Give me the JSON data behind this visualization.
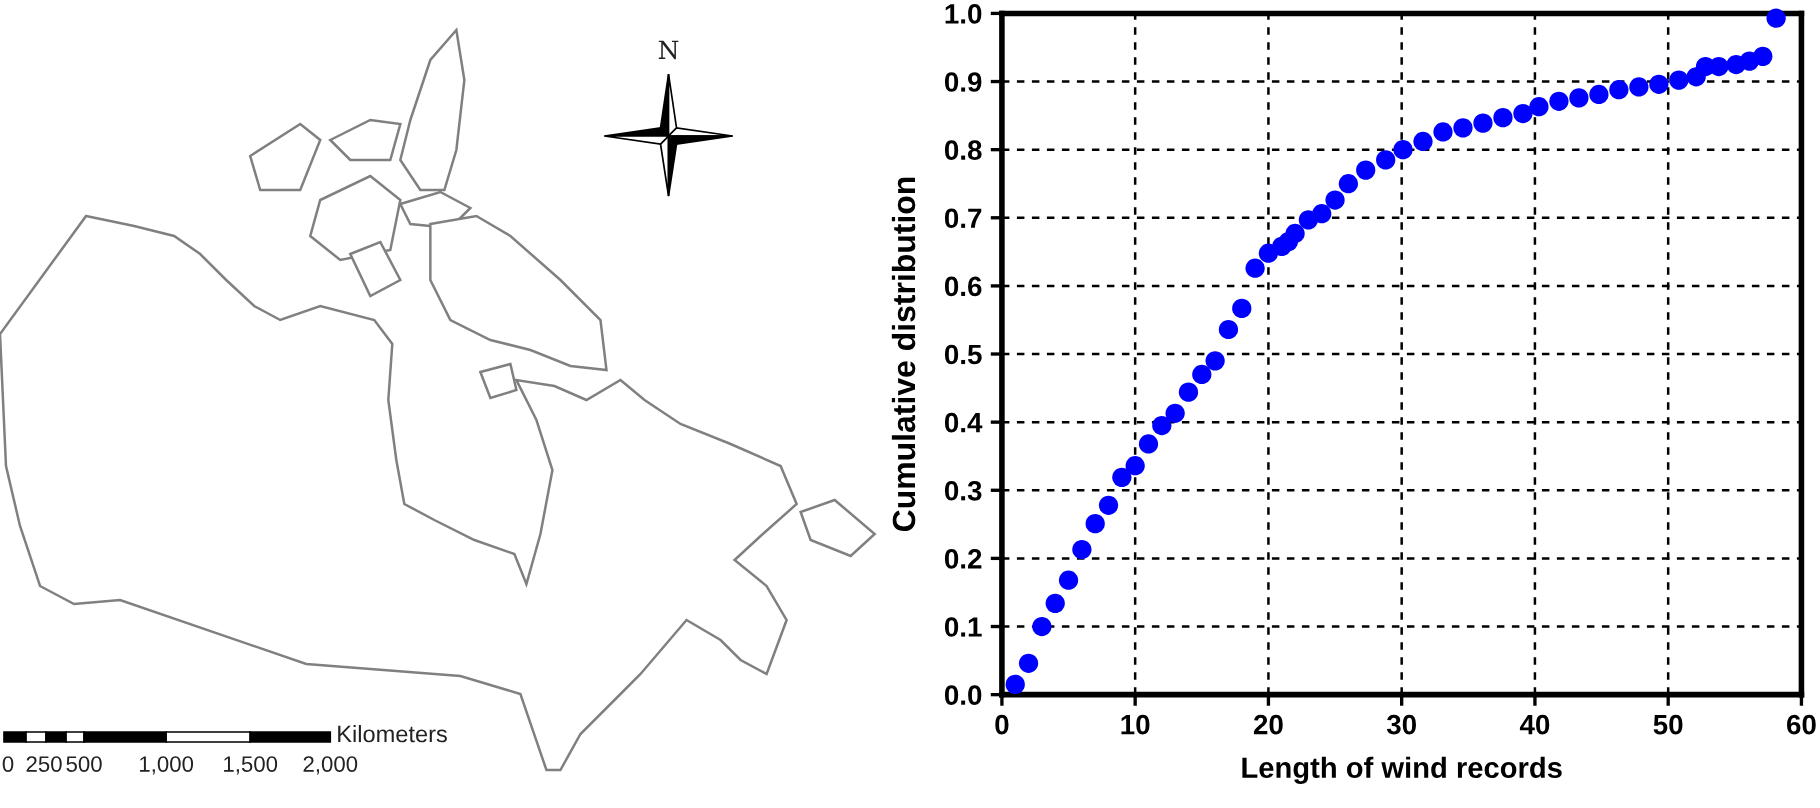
{
  "chart_data": [
    {
      "type": "other",
      "annotations": [
        "N",
        "0",
        "250",
        "500",
        "1,000",
        "1,500",
        "2,000",
        "Kilometers"
      ]
    },
    {
      "type": "scatter",
      "xlabel": "Length of wind records",
      "ylabel": "Cumulative distribution",
      "x": [
        1,
        2,
        3,
        4,
        5,
        6,
        7,
        8,
        9,
        10,
        11,
        12,
        13,
        14,
        15,
        16,
        17,
        18,
        19,
        20,
        21,
        21.5,
        22,
        23,
        24,
        25,
        26,
        27.3,
        28.8,
        30.1,
        31.6,
        33.1,
        34.6,
        36.1,
        37.6,
        39.1,
        40.3,
        41.8,
        43.3,
        44.8,
        46.3,
        47.8,
        49.3,
        50.8,
        52.1,
        52.8,
        53.8,
        55.1,
        56.1,
        57.1,
        58.1
      ],
      "values": [
        0.015,
        0.046,
        0.1,
        0.134,
        0.168,
        0.213,
        0.251,
        0.278,
        0.319,
        0.336,
        0.368,
        0.395,
        0.413,
        0.444,
        0.47,
        0.49,
        0.536,
        0.567,
        0.626,
        0.648,
        0.658,
        0.665,
        0.677,
        0.697,
        0.706,
        0.726,
        0.75,
        0.77,
        0.785,
        0.8,
        0.812,
        0.826,
        0.832,
        0.839,
        0.847,
        0.853,
        0.863,
        0.871,
        0.876,
        0.881,
        0.888,
        0.892,
        0.896,
        0.902,
        0.907,
        0.922,
        0.922,
        0.925,
        0.93,
        0.937,
        0.993
      ],
      "color": "#0000ff",
      "marker": "circle",
      "xlim": [
        0,
        60
      ],
      "ylim": [
        0,
        1
      ],
      "xticks": [
        0,
        10,
        20,
        30,
        40,
        50,
        60
      ],
      "yticks": [
        {
          "value": 0,
          "label": "0.0"
        },
        0.1,
        0.2,
        0.3,
        0.4,
        0.5,
        0.6,
        0.7,
        0.8,
        0.9,
        {
          "value": 1,
          "label": "1.0"
        }
      ],
      "grid": true
    }
  ]
}
